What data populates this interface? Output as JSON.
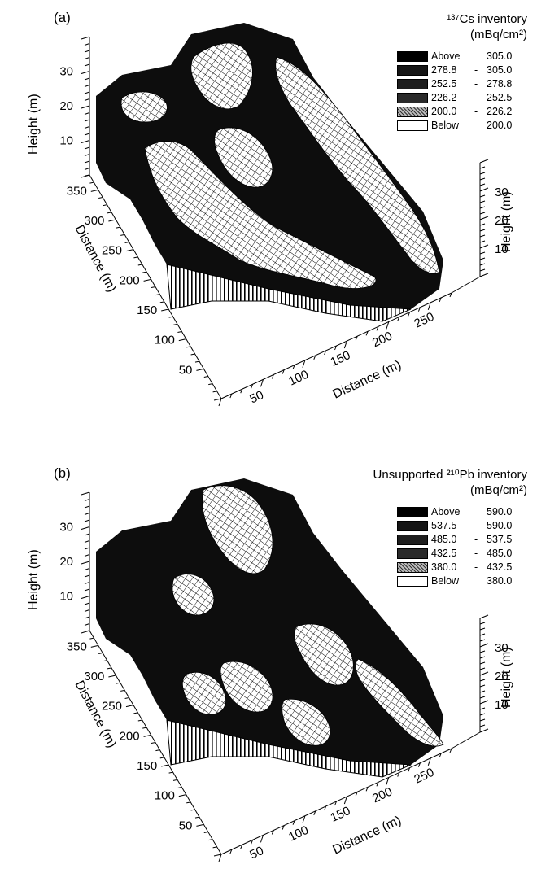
{
  "chart_data": [
    {
      "type": "surface3d",
      "panel_label": "(a)",
      "title": "¹³⁷Cs inventory",
      "units": "(mBq/cm²)",
      "legend": [
        {
          "low": "Above",
          "high": "305.0",
          "fill": "#000000"
        },
        {
          "low": "278.8",
          "high": "305.0",
          "fill": "#151515"
        },
        {
          "low": "252.5",
          "high": "278.8",
          "fill": "#1e1e1e"
        },
        {
          "low": "226.2",
          "high": "252.5",
          "fill": "#2a2a2a"
        },
        {
          "low": "200.0",
          "high": "226.2",
          "fill": "#8a8a8a"
        },
        {
          "low": "Below",
          "high": "200.0",
          "fill": "#ffffff"
        }
      ],
      "left_axis": {
        "label": "Height (m)",
        "ticks": [
          10,
          20,
          30
        ]
      },
      "right_axis": {
        "label": "Height (m)",
        "ticks": [
          10,
          20,
          30
        ]
      },
      "distance_y_axis": {
        "label": "Distance (m)",
        "ticks": [
          50,
          100,
          150,
          200,
          250,
          300,
          350
        ]
      },
      "distance_x_axis": {
        "label": "Distance (m)",
        "ticks": [
          50,
          100,
          150,
          200,
          250
        ]
      }
    },
    {
      "type": "surface3d",
      "panel_label": "(b)",
      "title": "Unsupported ²¹⁰Pb inventory",
      "units": "(mBq/cm²)",
      "legend": [
        {
          "low": "Above",
          "high": "590.0",
          "fill": "#000000"
        },
        {
          "low": "537.5",
          "high": "590.0",
          "fill": "#151515"
        },
        {
          "low": "485.0",
          "high": "537.5",
          "fill": "#1e1e1e"
        },
        {
          "low": "432.5",
          "high": "485.0",
          "fill": "#2a2a2a"
        },
        {
          "low": "380.0",
          "high": "432.5",
          "fill": "#8a8a8a"
        },
        {
          "low": "Below",
          "high": "380.0",
          "fill": "#ffffff"
        }
      ],
      "left_axis": {
        "label": "Height (m)",
        "ticks": [
          10,
          20,
          30
        ]
      },
      "right_axis": {
        "label": "Height (m)",
        "ticks": [
          10,
          20,
          30
        ]
      },
      "distance_y_axis": {
        "label": "Distance (m)",
        "ticks": [
          50,
          100,
          150,
          200,
          250,
          300,
          350
        ]
      },
      "distance_x_axis": {
        "label": "Distance (m)",
        "ticks": [
          50,
          100,
          150,
          200,
          250
        ]
      }
    }
  ]
}
